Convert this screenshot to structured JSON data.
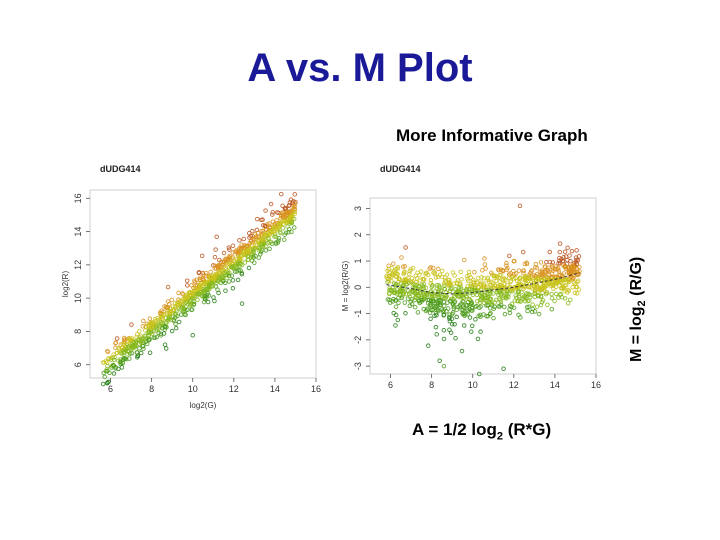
{
  "slide": {
    "title": "A vs. M Plot",
    "subtitle": "More Informative Graph",
    "right_axis_label_prefix": "M = log",
    "right_axis_label_sub": "2",
    "right_axis_label_suffix": " (R/G)",
    "bottom_label_prefix": "A = 1/2 log",
    "bottom_label_sub": "2",
    "bottom_label_suffix": " (R*G)"
  },
  "colors": {
    "title": "#1a1a99",
    "point_palette": [
      "#1f7a10",
      "#4a9a18",
      "#86b81c",
      "#c8c21a",
      "#d8901c",
      "#b8501a"
    ],
    "loess_line": "#333333"
  },
  "chart_data": [
    {
      "type": "scatter",
      "title": "dUDG414",
      "xlabel": "log2(G)",
      "ylabel": "log2(R)",
      "xlim": [
        5,
        16
      ],
      "ylim": [
        5.2,
        16.5
      ],
      "xticks": [
        6,
        8,
        10,
        12,
        14,
        16
      ],
      "yticks": [
        6,
        8,
        10,
        12,
        14,
        16
      ],
      "grid": false,
      "description_of_points": "dense diagonal cloud from about (5.5, 5.5) to (15, 15.5); green below diagonal, orange/red above",
      "trend": {
        "slope": 1.02,
        "intercept": -0.1
      }
    },
    {
      "type": "scatter",
      "title": "dUDG414",
      "xlabel": "",
      "ylabel": "M = log2(R/G)",
      "xlim": [
        5,
        16
      ],
      "ylim": [
        -3.3,
        3.4
      ],
      "xticks": [
        6,
        8,
        10,
        12,
        14,
        16
      ],
      "yticks": [
        -3,
        -2,
        -1,
        0,
        1,
        2,
        3
      ],
      "grid": false,
      "loess_curve": {
        "x": [
          5.8,
          7,
          8,
          9,
          10,
          11,
          12,
          13,
          14,
          15.2
        ],
        "y": [
          0.1,
          -0.05,
          -0.2,
          -0.25,
          -0.2,
          -0.1,
          0.0,
          0.15,
          0.3,
          0.55
        ]
      }
    }
  ]
}
